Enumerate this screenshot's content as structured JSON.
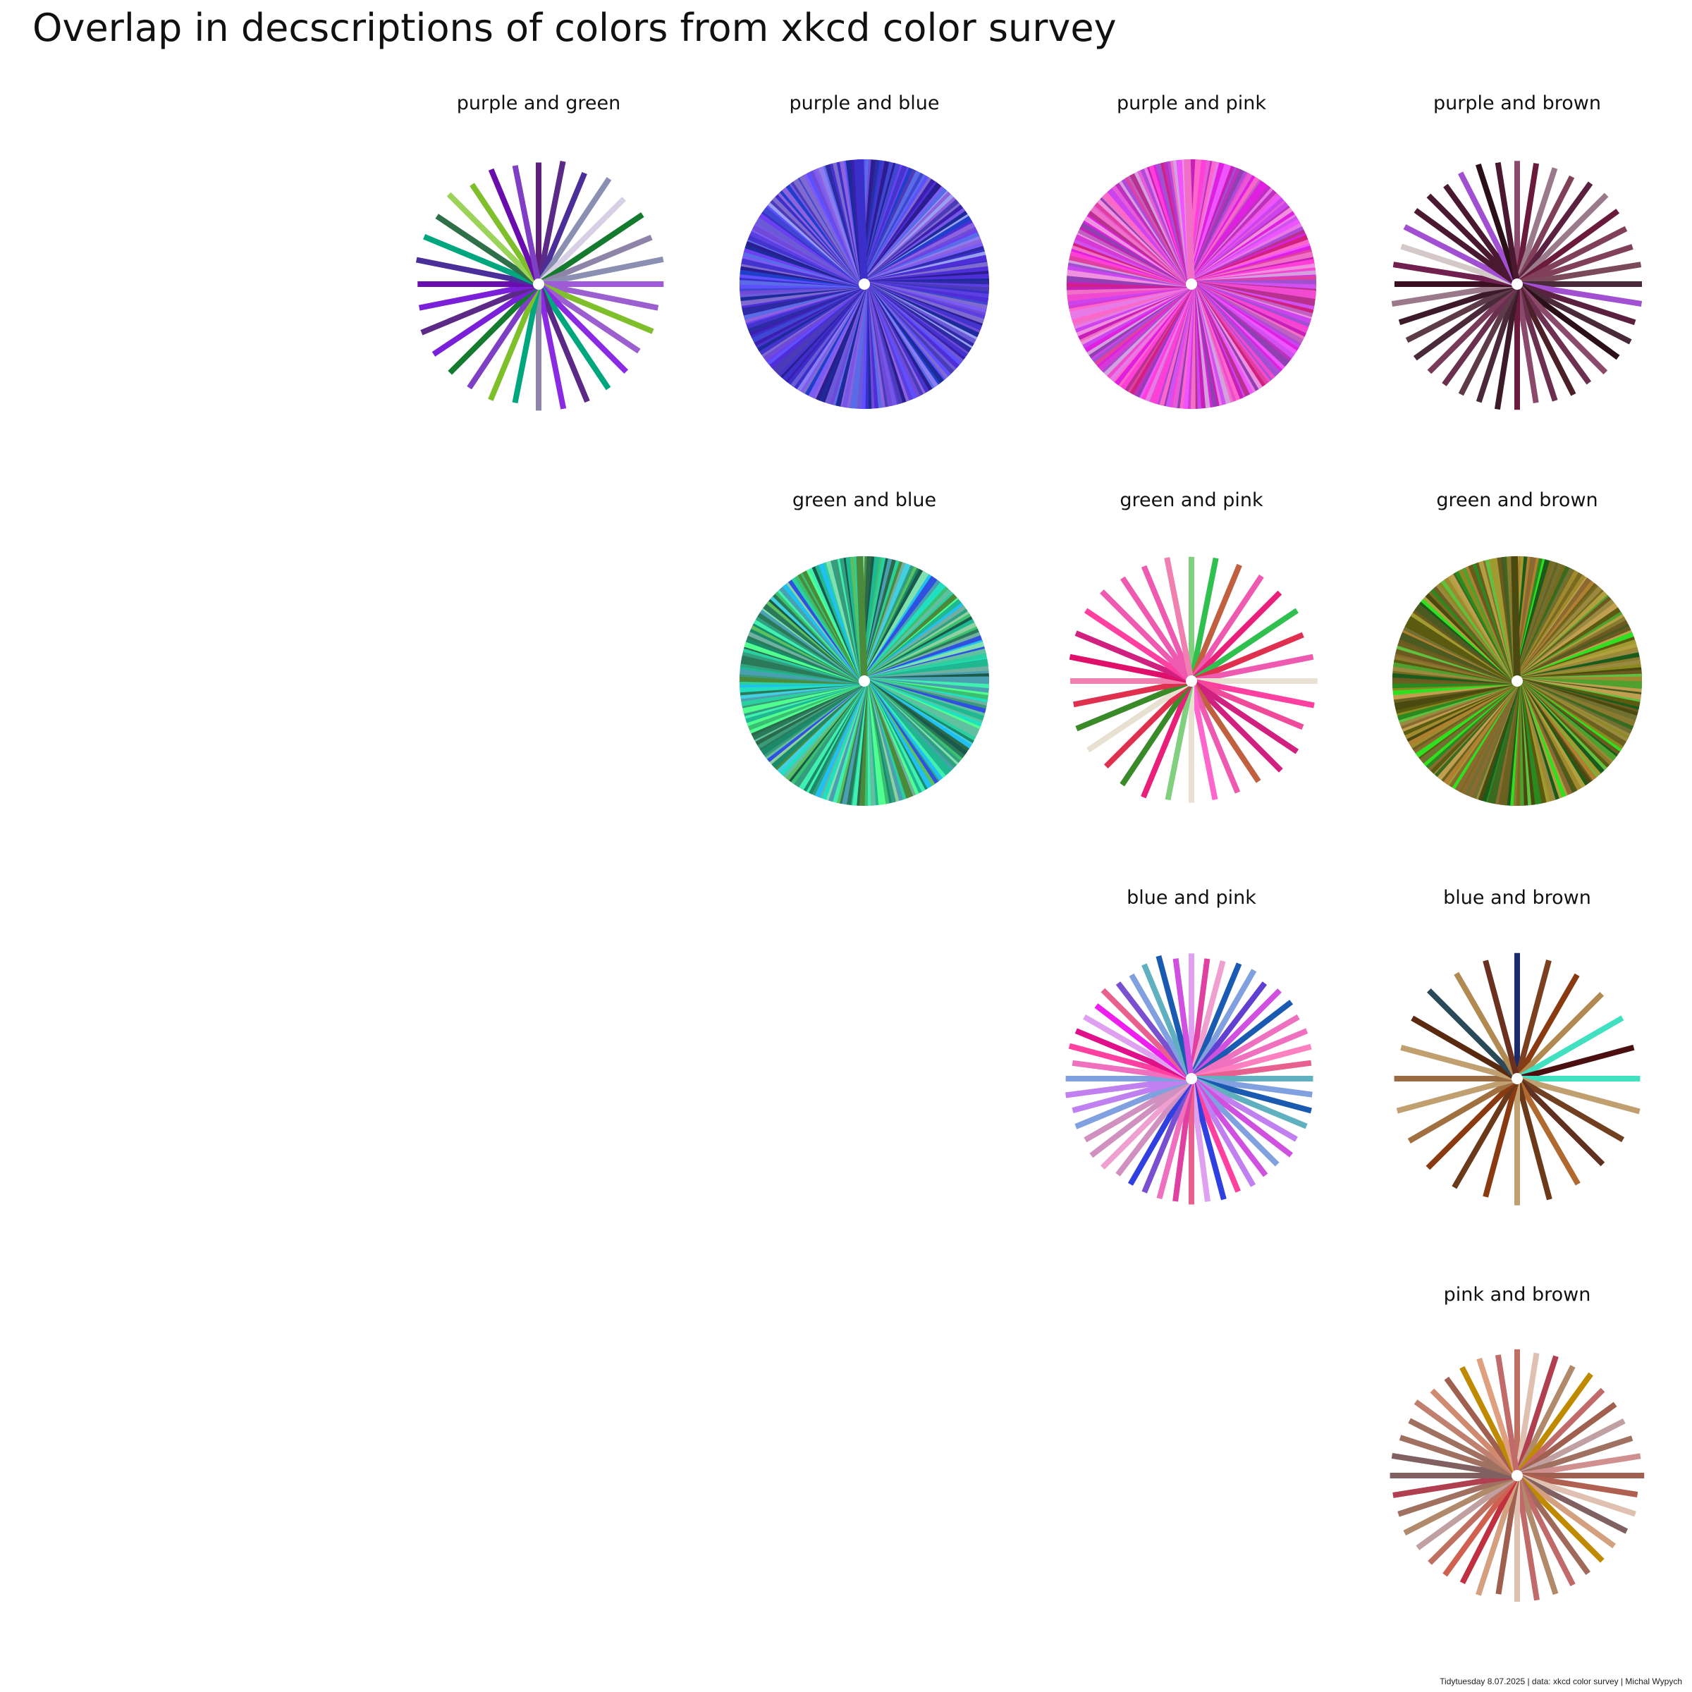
{
  "title": "Overlap in decscriptions of colors from xkcd color survey",
  "caption": "Tidytuesday 8.07.2025 | data: xkcd color survey | Michal Wypych",
  "chart_data": [
    {
      "type": "radial",
      "title": "purple and green",
      "row": 1,
      "col": 1,
      "n_lines": 32,
      "palette": [
        "#8a2be2",
        "#7a20d8",
        "#6a0dad",
        "#5b2a86",
        "#9b5fd0",
        "#6c5a8a",
        "#8e84a8",
        "#d8d0e4",
        "#4a2e9a",
        "#3f2b6b",
        "#5d1f7a",
        "#7f3fc4",
        "#a05ad9",
        "#8b8fb2",
        "#00a67e",
        "#137a2e",
        "#1e9e50",
        "#2d8a3d",
        "#55d32a",
        "#9bd45a",
        "#7fbf2c",
        "#6b8e23",
        "#3e8e2f",
        "#2f6f4a"
      ]
    },
    {
      "type": "radial",
      "title": "purple and blue",
      "row": 1,
      "col": 2,
      "n_lines": 220,
      "palette": [
        "#5b3fe0",
        "#6a40f0",
        "#4e2ed6",
        "#7a5cf5",
        "#3b2fc9",
        "#2e2aa6",
        "#5a6be8",
        "#8b7cf2",
        "#9aa0f0",
        "#4b3bb8",
        "#6f4ad9",
        "#3d1fb0",
        "#2a1d8f",
        "#7f6ad0",
        "#1f3ec9",
        "#4433cc",
        "#5e50ff",
        "#7656e6",
        "#8c62de",
        "#3f46d1",
        "#1c2a9a",
        "#6b5ad8"
      ]
    },
    {
      "type": "radial",
      "title": "purple and pink",
      "row": 1,
      "col": 3,
      "n_lines": 220,
      "palette": [
        "#e020e0",
        "#d63ad6",
        "#f04ad0",
        "#c030c0",
        "#ff3fd8",
        "#e87ae8",
        "#b04ad8",
        "#d050f0",
        "#f070c8",
        "#c81fb8",
        "#e040a0",
        "#a050d0",
        "#ff66cc",
        "#d4a0e0",
        "#b83090",
        "#e85bd8",
        "#cc44ee",
        "#f090e0",
        "#d02080",
        "#9040b0",
        "#ee55ff",
        "#c060c0"
      ]
    },
    {
      "type": "radial",
      "title": "purple and brown",
      "row": 1,
      "col": 4,
      "n_lines": 40,
      "palette": [
        "#3a1020",
        "#4a1830",
        "#5a2040",
        "#6b2f4f",
        "#7a3b5a",
        "#5c2a3a",
        "#8b4a6b",
        "#6e3050",
        "#4b2028",
        "#7b4a5a",
        "#3d1a2a",
        "#5e3b48",
        "#6a1a3a",
        "#80405a",
        "#2c1018",
        "#9a7a8a",
        "#8a20ff",
        "#a050d0",
        "#d4c8c8",
        "#5a2a50",
        "#702050",
        "#4a2a3a"
      ]
    },
    {
      "type": "radial",
      "title": "green and blue",
      "row": 2,
      "col": 2,
      "n_lines": 220,
      "palette": [
        "#2ad0a0",
        "#1fb890",
        "#40f0b0",
        "#30a080",
        "#20e0c0",
        "#3a9a7a",
        "#50ff90",
        "#1a8a6a",
        "#60c0a0",
        "#2a7a5a",
        "#40d0e0",
        "#20c0f0",
        "#80e0b0",
        "#1a5a4a",
        "#4a8a3a",
        "#5ac060",
        "#3ac070",
        "#70b0a0",
        "#2a6a4a",
        "#90d0a0",
        "#3050e0",
        "#4aa0b0"
      ]
    },
    {
      "type": "radial",
      "title": "green and pink",
      "row": 2,
      "col": 3,
      "n_lines": 32,
      "palette": [
        "#e8207a",
        "#f04a9a",
        "#ff66cc",
        "#e0106a",
        "#f080b0",
        "#ff40a0",
        "#e890f0",
        "#f0c0f0",
        "#e8e0d0",
        "#f02040",
        "#e03050",
        "#d02080",
        "#f06080",
        "#ee5ab0",
        "#00e040",
        "#1a5a2a",
        "#2a8a5a",
        "#30c050",
        "#3a8a2a",
        "#80d080",
        "#c06040",
        "#c05070"
      ]
    },
    {
      "type": "radial",
      "title": "green and brown",
      "row": 2,
      "col": 4,
      "n_lines": 220,
      "palette": [
        "#8a8a20",
        "#a09a30",
        "#7a6a20",
        "#b0a040",
        "#6a6020",
        "#8a7a30",
        "#5a5a10",
        "#9a8a40",
        "#707030",
        "#a08a30",
        "#4a5a20",
        "#3a6a20",
        "#50a030",
        "#2a8a20",
        "#1a5a1a",
        "#60c040",
        "#30e020",
        "#8a6a30",
        "#c0a050",
        "#6a5a20",
        "#b08030",
        "#4a4a10"
      ]
    },
    {
      "type": "radial",
      "title": "blue and pink",
      "row": 3,
      "col": 3,
      "n_lines": 48,
      "palette": [
        "#ff20d0",
        "#e040a0",
        "#f070c0",
        "#ff80c0",
        "#f0a0d0",
        "#e86090",
        "#e0108a",
        "#ff40a0",
        "#d050e0",
        "#c080f0",
        "#e0a0f0",
        "#f0c0e0",
        "#d090c0",
        "#ee20ee",
        "#2080e0",
        "#1a5ab0",
        "#2030a0",
        "#3040e0",
        "#4060c0",
        "#6040d0",
        "#80a0e0",
        "#a0d0e0",
        "#60b0c0",
        "#7a50d0"
      ]
    },
    {
      "type": "radial",
      "title": "blue and brown",
      "row": 3,
      "col": 4,
      "n_lines": 24,
      "palette": [
        "#8a4a20",
        "#a05a30",
        "#6a3a1a",
        "#b06a30",
        "#7a4020",
        "#9a6a40",
        "#8a3a10",
        "#5a2a10",
        "#a07040",
        "#704020",
        "#603020",
        "#8a5030",
        "#c0a070",
        "#b08a50",
        "#1a2a6a",
        "#2a4a5a",
        "#40e0c0",
        "#4a1010",
        "#6a3020",
        "#7a5a4a"
      ]
    },
    {
      "type": "radial",
      "title": "pink and brown",
      "row": 4,
      "col": 4,
      "n_lines": 40,
      "palette": [
        "#c07060",
        "#d08a70",
        "#b05a50",
        "#e0a080",
        "#c0a090",
        "#a06050",
        "#d06050",
        "#e0c0b0",
        "#c03040",
        "#b04050",
        "#a06a5a",
        "#c08070",
        "#e0b890",
        "#d4a080",
        "#c0a0a0",
        "#b08a6a",
        "#c08a00",
        "#806060",
        "#a07060",
        "#c06a6a",
        "#d09090",
        "#b06050"
      ]
    }
  ]
}
